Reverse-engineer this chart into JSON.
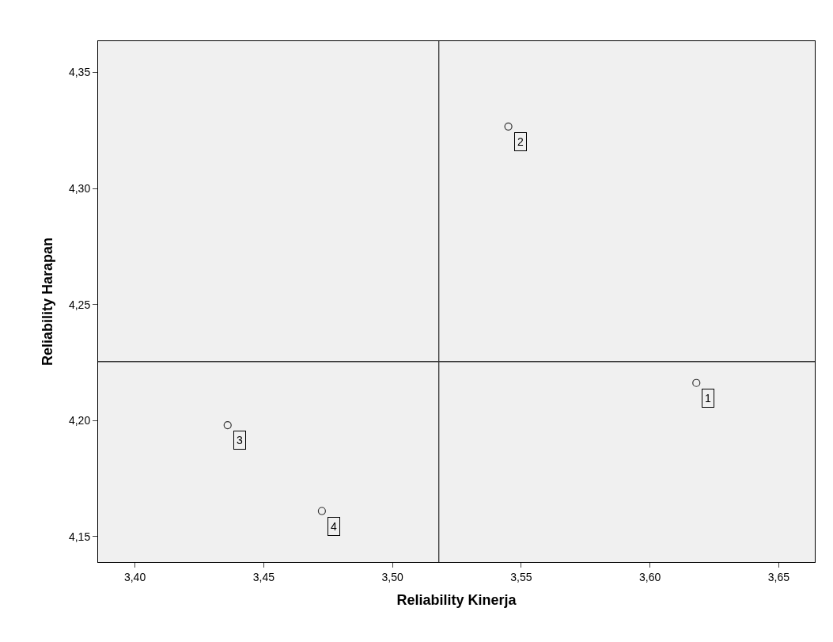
{
  "chart_data": {
    "type": "scatter",
    "xlabel": "Reliability Kinerja",
    "ylabel": "Reliability Harapan",
    "x": [
      3.618,
      3.545,
      3.436,
      3.4726
    ],
    "series": [
      {
        "color": "#333333",
        "values": [
          4.2162,
          4.3267,
          4.198,
          4.161
        ]
      }
    ],
    "marker": "circle",
    "annotations": [
      {
        "text": "1",
        "x": 3.618,
        "y": 4.2162
      },
      {
        "text": "2",
        "x": 3.545,
        "y": 4.3267
      },
      {
        "text": "3",
        "x": 3.436,
        "y": 4.198
      },
      {
        "text": "4",
        "x": 3.4726,
        "y": 4.161
      }
    ],
    "ref_lines": [
      {
        "axis": "x",
        "value": 3.518,
        "color": "#333333"
      },
      {
        "axis": "y",
        "value": 4.2254,
        "color": "#333333"
      }
    ],
    "xlim": [
      3.3857,
      3.664
    ],
    "xticks": [
      {
        "value": 3.4,
        "label": "3,40"
      },
      {
        "value": 3.45,
        "label": "3,45"
      },
      {
        "value": 3.5,
        "label": "3,50"
      },
      {
        "value": 3.55,
        "label": "3,55"
      },
      {
        "value": 3.6,
        "label": "3,60"
      },
      {
        "value": 3.65,
        "label": "3,65"
      }
    ],
    "ylim": [
      4.139,
      4.3635
    ],
    "yticks": [
      {
        "value": 4.15,
        "label": "4,15"
      },
      {
        "value": 4.2,
        "label": "4,20"
      },
      {
        "value": 4.25,
        "label": "4,25"
      },
      {
        "value": 4.3,
        "label": "4,30"
      },
      {
        "value": 4.35,
        "label": "4,35"
      }
    ],
    "grid": false
  }
}
